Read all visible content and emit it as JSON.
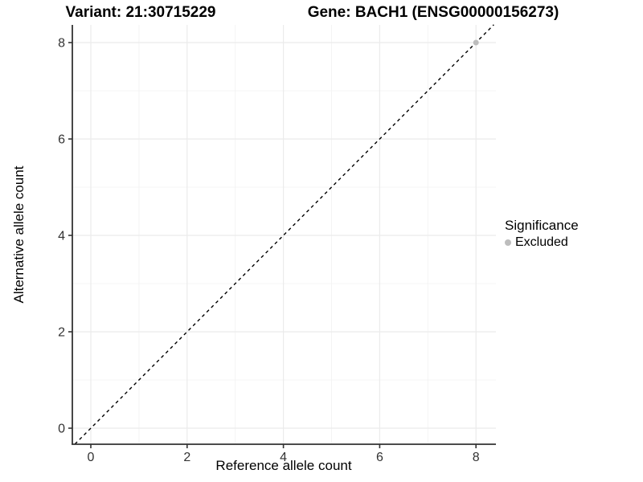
{
  "titles": {
    "left": "Variant: 21:30715229",
    "right": "Gene: BACH1 (ENSG00000156273)"
  },
  "chart_data": {
    "type": "scatter",
    "xlabel": "Reference allele count",
    "ylabel": "Alternative allele count",
    "xlim": [
      -0.33,
      8.37
    ],
    "ylim": [
      -0.33,
      8.37
    ],
    "x_ticks": [
      0,
      2,
      4,
      6,
      8
    ],
    "y_ticks": [
      0,
      2,
      4,
      6,
      8
    ],
    "x_minor_ticks": [
      1,
      3,
      5,
      7
    ],
    "y_minor_ticks": [
      1,
      3,
      5,
      7
    ],
    "grid": true,
    "reference_line": {
      "type": "identity",
      "style": "dashed",
      "color": "#000000"
    },
    "series": [
      {
        "name": "Excluded",
        "color": "#bdbdbd",
        "points": [
          {
            "x": 8,
            "y": 8
          }
        ]
      }
    ],
    "legend": {
      "title": "Significance",
      "position": "right",
      "entries": [
        {
          "label": "Excluded",
          "color": "#bdbdbd"
        }
      ]
    }
  },
  "colors": {
    "grid_major": "#ebebeb",
    "grid_minor": "#f4f4f4",
    "axis_line": "#333333",
    "tick_label": "#333333",
    "point": "#bdbdbd"
  }
}
